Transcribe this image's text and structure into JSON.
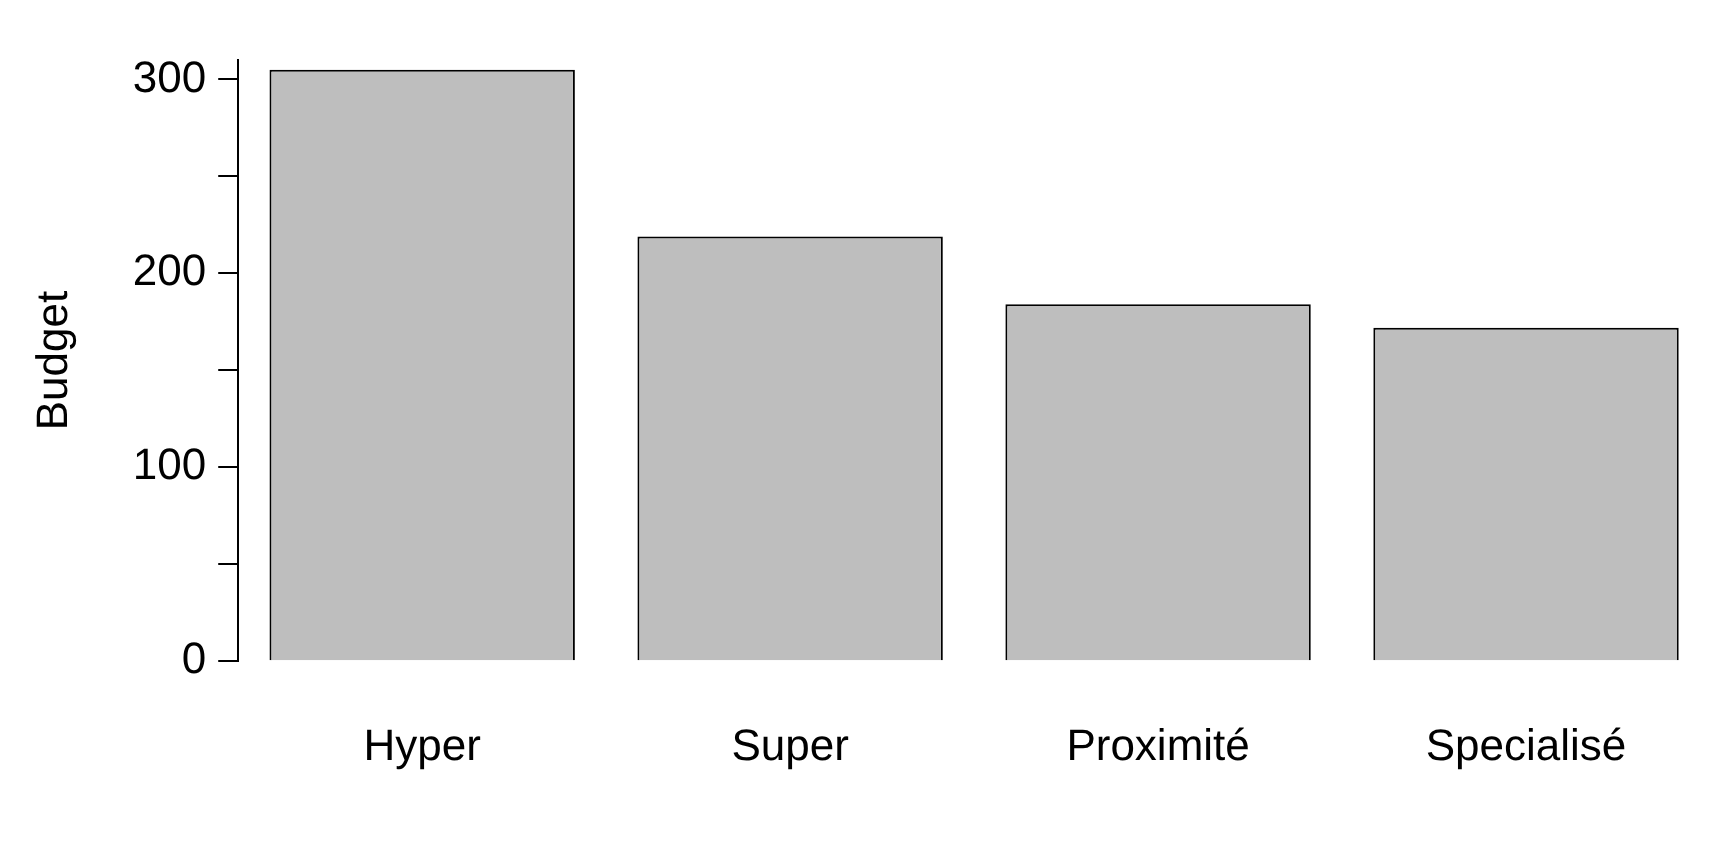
{
  "chart_data": {
    "type": "bar",
    "ylabel": "Budget",
    "categories": [
      "Hyper",
      "Super",
      "Proximité",
      "Specialisé"
    ],
    "values": [
      305,
      219,
      184,
      172
    ],
    "color": "#bebebe",
    "ylim": [
      0,
      310
    ],
    "yticks": [
      0,
      {
        "value": 50,
        "label": null
      },
      100,
      {
        "value": 150,
        "label": null
      },
      200,
      {
        "value": 250,
        "label": null
      },
      300
    ],
    "grid": false,
    "legend": false
  }
}
